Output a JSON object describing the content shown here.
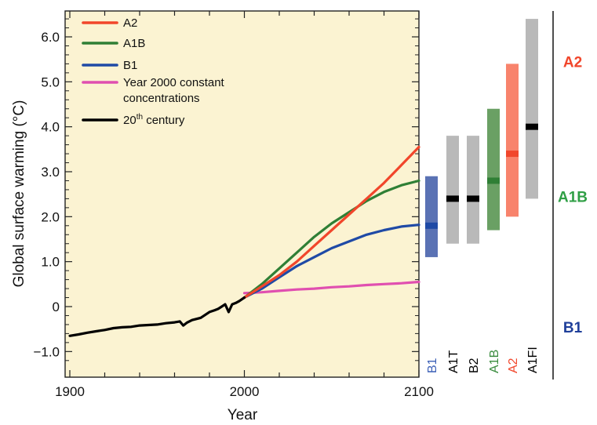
{
  "chart_data": {
    "type": "line",
    "xlabel": "Year",
    "ylabel": "Global surface warming (°C)",
    "xlim": [
      1900,
      2100
    ],
    "ylim": [
      -1.3,
      6.5
    ],
    "x_ticks": [
      "1900",
      "2000",
      "2100"
    ],
    "y_ticks": [
      "−1.0",
      "0",
      "1.0",
      "2.0",
      "3.0",
      "4.0",
      "5.0",
      "6.0"
    ],
    "grid": false,
    "background_color": "#fbf3d2",
    "legend": {
      "placement": "top-left",
      "entries": [
        {
          "label": "A2",
          "color": "#f1462b"
        },
        {
          "label": "A1B",
          "color": "#2f7f35"
        },
        {
          "label": "B1",
          "color": "#1f4aa6"
        },
        {
          "label": "Year 2000 constant",
          "label2": "concentrations",
          "color": "#e04fb0"
        },
        {
          "label": "20",
          "sup": "th",
          "label_rest": " century",
          "color": "#000000"
        }
      ]
    },
    "series": [
      {
        "name": "20th century",
        "color": "#000000",
        "points": [
          [
            1900,
            -0.65
          ],
          [
            1905,
            -0.62
          ],
          [
            1910,
            -0.58
          ],
          [
            1915,
            -0.55
          ],
          [
            1920,
            -0.52
          ],
          [
            1925,
            -0.48
          ],
          [
            1930,
            -0.46
          ],
          [
            1935,
            -0.45
          ],
          [
            1940,
            -0.42
          ],
          [
            1945,
            -0.41
          ],
          [
            1950,
            -0.4
          ],
          [
            1955,
            -0.37
          ],
          [
            1960,
            -0.35
          ],
          [
            1963,
            -0.33
          ],
          [
            1965,
            -0.42
          ],
          [
            1967,
            -0.36
          ],
          [
            1970,
            -0.3
          ],
          [
            1975,
            -0.25
          ],
          [
            1980,
            -0.12
          ],
          [
            1983,
            -0.08
          ],
          [
            1985,
            -0.05
          ],
          [
            1987,
            0.0
          ],
          [
            1989,
            0.05
          ],
          [
            1991,
            -0.12
          ],
          [
            1993,
            0.05
          ],
          [
            1995,
            0.08
          ],
          [
            1997,
            0.12
          ],
          [
            2000,
            0.2
          ]
        ]
      },
      {
        "name": "A2",
        "color": "#f1462b",
        "points": [
          [
            2000,
            0.2
          ],
          [
            2010,
            0.45
          ],
          [
            2020,
            0.7
          ],
          [
            2030,
            1.0
          ],
          [
            2040,
            1.35
          ],
          [
            2050,
            1.7
          ],
          [
            2060,
            2.05
          ],
          [
            2070,
            2.4
          ],
          [
            2080,
            2.75
          ],
          [
            2090,
            3.15
          ],
          [
            2100,
            3.55
          ]
        ]
      },
      {
        "name": "A1B",
        "color": "#2f7f35",
        "points": [
          [
            2000,
            0.2
          ],
          [
            2010,
            0.5
          ],
          [
            2020,
            0.85
          ],
          [
            2030,
            1.2
          ],
          [
            2040,
            1.55
          ],
          [
            2050,
            1.85
          ],
          [
            2060,
            2.1
          ],
          [
            2070,
            2.35
          ],
          [
            2080,
            2.55
          ],
          [
            2090,
            2.7
          ],
          [
            2100,
            2.8
          ]
        ]
      },
      {
        "name": "B1",
        "color": "#1f4aa6",
        "points": [
          [
            2000,
            0.2
          ],
          [
            2010,
            0.4
          ],
          [
            2020,
            0.65
          ],
          [
            2030,
            0.9
          ],
          [
            2040,
            1.1
          ],
          [
            2050,
            1.3
          ],
          [
            2060,
            1.45
          ],
          [
            2070,
            1.6
          ],
          [
            2080,
            1.7
          ],
          [
            2090,
            1.78
          ],
          [
            2100,
            1.82
          ]
        ]
      },
      {
        "name": "Year 2000 constant concentrations",
        "color": "#e04fb0",
        "points": [
          [
            2000,
            0.3
          ],
          [
            2010,
            0.32
          ],
          [
            2020,
            0.35
          ],
          [
            2030,
            0.38
          ],
          [
            2040,
            0.4
          ],
          [
            2050,
            0.43
          ],
          [
            2060,
            0.45
          ],
          [
            2070,
            0.48
          ],
          [
            2080,
            0.5
          ],
          [
            2090,
            0.52
          ],
          [
            2100,
            0.55
          ]
        ]
      }
    ],
    "ranges": [
      {
        "label": "B1",
        "low": 1.1,
        "high": 2.9,
        "best": 1.8,
        "color": "#5a72b4",
        "best_color": "#1f4aa6",
        "label_color": "#3b5fb6"
      },
      {
        "label": "A1T",
        "low": 1.4,
        "high": 3.8,
        "best": 2.4,
        "color": "#b9b9b9",
        "best_color": "#000000",
        "label_color": "#000000"
      },
      {
        "label": "B2",
        "low": 1.4,
        "high": 3.8,
        "best": 2.4,
        "color": "#b9b9b9",
        "best_color": "#000000",
        "label_color": "#000000"
      },
      {
        "label": "A1B",
        "low": 1.7,
        "high": 4.4,
        "best": 2.8,
        "color": "#6aa064",
        "best_color": "#2f7f35",
        "label_color": "#3a8c3e"
      },
      {
        "label": "A2",
        "low": 2.0,
        "high": 5.4,
        "best": 3.4,
        "color": "#f8836c",
        "best_color": "#f1462b",
        "label_color": "#f1462b"
      },
      {
        "label": "A1FI",
        "low": 2.4,
        "high": 6.4,
        "best": 4.0,
        "color": "#b9b9b9",
        "best_color": "#000000",
        "label_color": "#000000"
      }
    ],
    "side_labels": [
      {
        "label": "A2",
        "color": "#f1462b",
        "y": 5.45
      },
      {
        "label": "A1B",
        "color": "#2f9f45",
        "y": 2.45
      },
      {
        "label": "B1",
        "color": "#1f3f9a",
        "y": -0.45
      }
    ]
  }
}
